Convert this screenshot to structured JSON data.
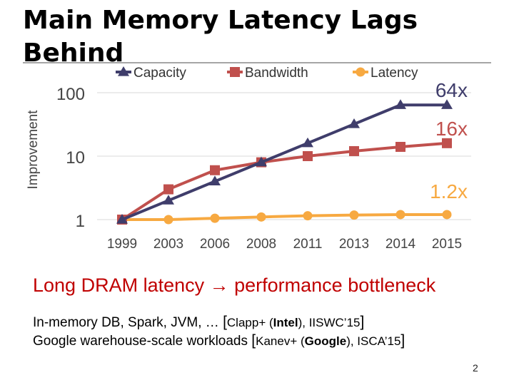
{
  "slide": {
    "title": "Main Memory Latency Lags Behind",
    "subheading": "Long DRAM latency → performance bottleneck",
    "line1": {
      "text": "In-memory DB, Spark, JVM, …",
      "cite_open": "[",
      "cite_authors": "Clapp+ (",
      "cite_org": "Intel",
      "cite_rest": "), IISWC’15",
      "cite_close": "]"
    },
    "line2": {
      "text": "Google warehouse-scale workloads",
      "cite_open": "[",
      "cite_authors": "Kanev+ (",
      "cite_org": "Google",
      "cite_rest": "), ISCA’15",
      "cite_close": "]"
    },
    "page_number": "2"
  },
  "chart_data": {
    "type": "line",
    "ylabel": "Improvement",
    "yscale": "log",
    "ylim": [
      1,
      100
    ],
    "yticks": [
      "1",
      "10",
      "100"
    ],
    "categories": [
      "1999",
      "2003",
      "2006",
      "2008",
      "2011",
      "2013",
      "2014",
      "2015"
    ],
    "legend_position": "top",
    "series": [
      {
        "name": "Capacity",
        "marker": "triangle",
        "color": "#3f3d6b",
        "values": [
          1,
          2,
          4,
          8,
          16,
          32,
          64,
          64
        ],
        "end_label": "64x"
      },
      {
        "name": "Bandwidth",
        "marker": "square",
        "color": "#c0504d",
        "values": [
          1,
          3,
          6,
          8,
          10,
          12,
          14,
          16
        ],
        "end_label": "16x"
      },
      {
        "name": "Latency",
        "marker": "circle",
        "color": "#f7a941",
        "values": [
          1,
          1,
          1.05,
          1.1,
          1.15,
          1.18,
          1.2,
          1.2
        ],
        "end_label": "1.2x"
      }
    ]
  }
}
